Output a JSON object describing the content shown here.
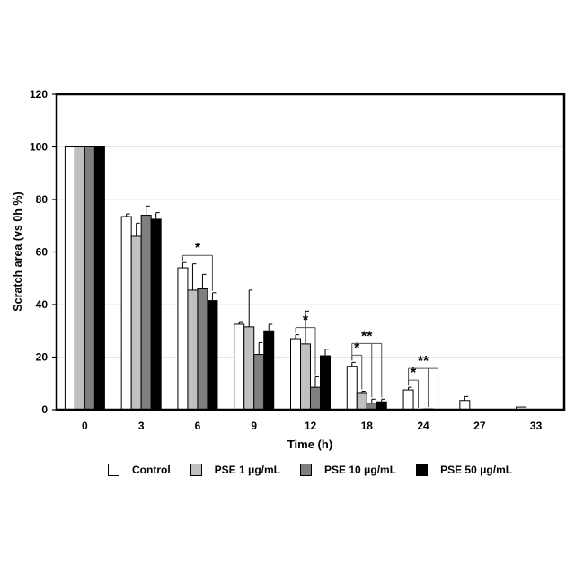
{
  "chart_data": {
    "type": "bar",
    "xlabel": "Time (h)",
    "ylabel": "Scratch area (vs 0h %)",
    "ylim": [
      0,
      120
    ],
    "yticks": [
      0,
      20,
      40,
      60,
      80,
      100,
      120
    ],
    "grid": true,
    "legend_position": "bottom",
    "categories": [
      "0",
      "3",
      "6",
      "9",
      "12",
      "18",
      "24",
      "27",
      "33"
    ],
    "series": [
      {
        "name": "Control",
        "color": "#ffffff",
        "values": [
          100,
          73.5,
          54,
          32.5,
          27,
          16.5,
          7.5,
          3.5,
          1
        ],
        "errors": [
          0,
          1,
          2,
          1,
          1.5,
          1.5,
          1,
          1.5,
          0
        ]
      },
      {
        "name": "PSE 1 μg/mL",
        "color": "#c0c0c0",
        "values": [
          100,
          66,
          45.5,
          31.5,
          25,
          6.5,
          0,
          0,
          0
        ],
        "errors": [
          0,
          5,
          10,
          14,
          12.5,
          0.5,
          0,
          0,
          0
        ]
      },
      {
        "name": "PSE 10 μg/mL",
        "color": "#7f7f7f",
        "values": [
          100,
          74,
          46,
          21,
          8.5,
          2.5,
          0.3,
          0,
          0
        ],
        "errors": [
          0,
          3.5,
          5.5,
          4.5,
          4,
          1.5,
          0,
          0,
          0
        ]
      },
      {
        "name": "PSE 50 μg/mL",
        "color": "#000000",
        "values": [
          100,
          72.5,
          41.5,
          30,
          20.5,
          3,
          0,
          0,
          0
        ],
        "errors": [
          0,
          2.5,
          3,
          2.5,
          2.5,
          1,
          0,
          0,
          0
        ]
      }
    ],
    "significance": [
      {
        "label": "*",
        "category": "6",
        "from": 0,
        "to": [
          3
        ]
      },
      {
        "label": "*",
        "category": "12",
        "from": 0,
        "to": [
          2
        ]
      },
      {
        "label": "*",
        "category": "18",
        "from": 0,
        "to": [
          1
        ]
      },
      {
        "label": "**",
        "category": "18",
        "from": 0,
        "to": [
          2,
          3
        ]
      },
      {
        "label": "*",
        "category": "24",
        "from": 0,
        "to": [
          1
        ]
      },
      {
        "label": "**",
        "category": "24",
        "from": 0,
        "to": [
          2,
          3
        ]
      }
    ]
  }
}
